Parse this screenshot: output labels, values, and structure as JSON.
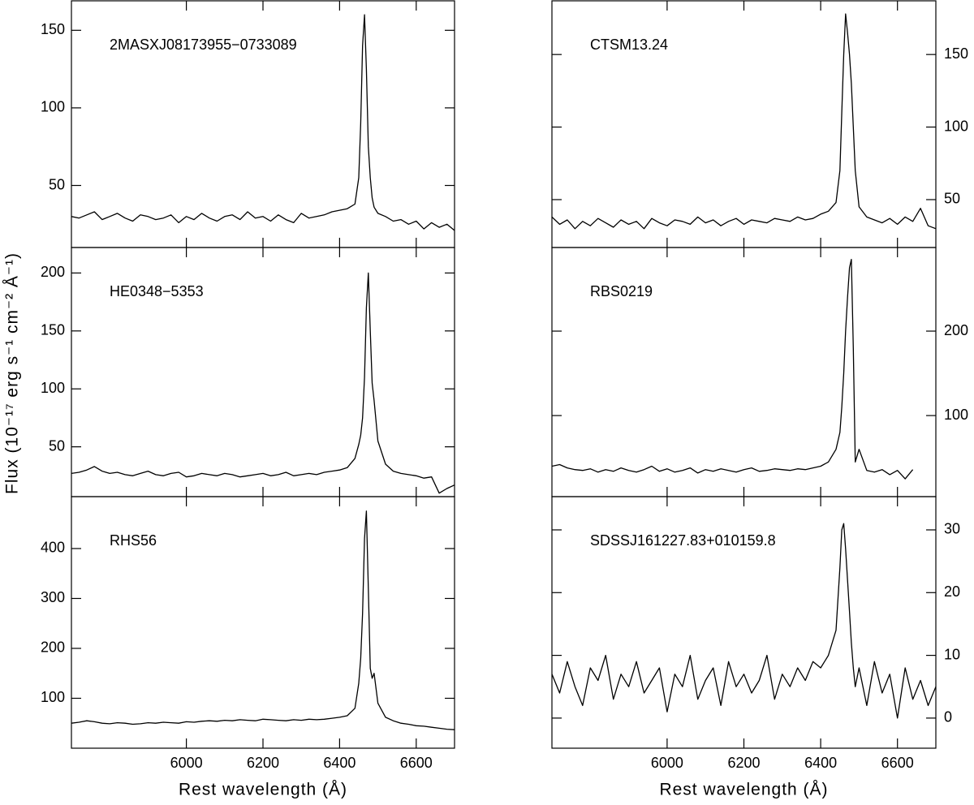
{
  "chart_data": [
    {
      "type": "line",
      "title": "2MASXJ08173955−0733089",
      "x": [
        5700,
        5720,
        5740,
        5760,
        5780,
        5800,
        5820,
        5840,
        5860,
        5880,
        5900,
        5920,
        5940,
        5960,
        5980,
        6000,
        6020,
        6040,
        6060,
        6080,
        6100,
        6120,
        6140,
        6160,
        6180,
        6200,
        6220,
        6240,
        6260,
        6280,
        6300,
        6320,
        6340,
        6360,
        6380,
        6400,
        6420,
        6440,
        6450,
        6455,
        6460,
        6465,
        6470,
        6475,
        6480,
        6485,
        6490,
        6500,
        6520,
        6540,
        6560,
        6580,
        6600,
        6620,
        6640,
        6660,
        6680,
        6700
      ],
      "values": [
        30,
        29,
        31,
        33,
        28,
        30,
        32,
        29,
        27,
        31,
        30,
        28,
        29,
        31,
        26,
        30,
        28,
        32,
        29,
        27,
        30,
        31,
        28,
        33,
        29,
        30,
        27,
        31,
        28,
        26,
        32,
        29,
        30,
        31,
        33,
        34,
        35,
        38,
        55,
        90,
        140,
        160,
        125,
        75,
        55,
        42,
        36,
        32,
        30,
        27,
        28,
        25,
        27,
        22,
        26,
        23,
        25,
        21
      ],
      "color": "#000000",
      "xlim": [
        5700,
        6700
      ],
      "ylim": [
        10,
        169
      ],
      "xticks": [
        6000,
        6200,
        6400,
        6600
      ],
      "yticks": [
        50,
        100,
        150
      ]
    },
    {
      "type": "line",
      "title": "HE0348−5353",
      "ylabel": "Flux (10⁻¹⁷ erg s⁻¹ cm⁻² Å⁻¹)",
      "x": [
        5700,
        5720,
        5740,
        5760,
        5780,
        5800,
        5820,
        5840,
        5860,
        5880,
        5900,
        5920,
        5940,
        5960,
        5980,
        6000,
        6020,
        6040,
        6060,
        6080,
        6100,
        6120,
        6140,
        6160,
        6180,
        6200,
        6220,
        6240,
        6260,
        6280,
        6300,
        6320,
        6340,
        6360,
        6380,
        6400,
        6420,
        6440,
        6450,
        6455,
        6460,
        6465,
        6470,
        6475,
        6480,
        6485,
        6490,
        6500,
        6520,
        6540,
        6560,
        6580,
        6600,
        6620,
        6640,
        6660,
        6680,
        6700
      ],
      "values": [
        27,
        28,
        30,
        33,
        29,
        27,
        28,
        26,
        25,
        27,
        29,
        26,
        25,
        27,
        28,
        24,
        25,
        27,
        26,
        25,
        27,
        26,
        24,
        25,
        26,
        27,
        25,
        26,
        28,
        25,
        26,
        27,
        26,
        28,
        29,
        30,
        32,
        40,
        52,
        60,
        75,
        110,
        170,
        200,
        150,
        105,
        90,
        55,
        35,
        29,
        27,
        26,
        25,
        23,
        24,
        10,
        14,
        17
      ],
      "color": "#000000",
      "xlim": [
        5700,
        6700
      ],
      "ylim": [
        7,
        222
      ],
      "xticks": [
        6000,
        6200,
        6400,
        6600
      ],
      "yticks": [
        50,
        100,
        150,
        200
      ]
    },
    {
      "type": "line",
      "title": "RHS56",
      "xlabel": "Rest wavelength (Å)",
      "x": [
        5700,
        5720,
        5740,
        5760,
        5780,
        5800,
        5820,
        5840,
        5860,
        5880,
        5900,
        5920,
        5940,
        5960,
        5980,
        6000,
        6020,
        6040,
        6060,
        6080,
        6100,
        6120,
        6140,
        6160,
        6180,
        6200,
        6220,
        6240,
        6260,
        6280,
        6300,
        6320,
        6340,
        6360,
        6380,
        6400,
        6420,
        6440,
        6450,
        6455,
        6460,
        6465,
        6470,
        6475,
        6480,
        6485,
        6490,
        6500,
        6520,
        6540,
        6560,
        6580,
        6600,
        6620,
        6640,
        6660,
        6680,
        6700
      ],
      "values": [
        50,
        52,
        55,
        53,
        50,
        49,
        51,
        50,
        48,
        49,
        51,
        50,
        52,
        51,
        50,
        53,
        52,
        54,
        55,
        54,
        56,
        55,
        57,
        56,
        55,
        58,
        57,
        56,
        55,
        57,
        56,
        58,
        57,
        58,
        60,
        62,
        65,
        80,
        130,
        180,
        270,
        420,
        475,
        320,
        160,
        140,
        150,
        90,
        62,
        55,
        50,
        48,
        45,
        44,
        42,
        40,
        38,
        37
      ],
      "color": "#000000",
      "xlim": [
        5700,
        6700
      ],
      "ylim": [
        0,
        504
      ],
      "xticks": [
        6000,
        6200,
        6400,
        6600
      ],
      "yticks": [
        100,
        200,
        300,
        400
      ]
    },
    {
      "type": "line",
      "title": "CTSM13.24",
      "x": [
        5700,
        5720,
        5740,
        5760,
        5780,
        5800,
        5820,
        5840,
        5860,
        5880,
        5900,
        5920,
        5940,
        5960,
        5980,
        6000,
        6020,
        6040,
        6060,
        6080,
        6100,
        6120,
        6140,
        6160,
        6180,
        6200,
        6220,
        6240,
        6260,
        6280,
        6300,
        6320,
        6340,
        6360,
        6380,
        6400,
        6420,
        6440,
        6450,
        6455,
        6460,
        6465,
        6470,
        6475,
        6480,
        6485,
        6490,
        6500,
        6520,
        6540,
        6560,
        6580,
        6600,
        6620,
        6640,
        6660,
        6680,
        6700
      ],
      "values": [
        38,
        33,
        36,
        30,
        35,
        32,
        37,
        34,
        31,
        36,
        33,
        35,
        30,
        37,
        34,
        32,
        36,
        35,
        33,
        38,
        34,
        36,
        32,
        35,
        37,
        33,
        36,
        35,
        34,
        37,
        36,
        35,
        38,
        36,
        37,
        40,
        42,
        48,
        70,
        110,
        150,
        178,
        165,
        150,
        130,
        100,
        70,
        45,
        38,
        36,
        34,
        37,
        33,
        38,
        35,
        44,
        32,
        30
      ],
      "color": "#000000",
      "xlim": [
        5700,
        6700
      ],
      "ylim": [
        17,
        187
      ],
      "xticks": [
        6000,
        6200,
        6400,
        6600
      ],
      "yticks": [
        50,
        100,
        150
      ]
    },
    {
      "type": "line",
      "title": "RBS0219",
      "x": [
        5700,
        5720,
        5740,
        5760,
        5780,
        5800,
        5820,
        5840,
        5860,
        5880,
        5900,
        5920,
        5940,
        5960,
        5980,
        6000,
        6020,
        6040,
        6060,
        6080,
        6100,
        6120,
        6140,
        6160,
        6180,
        6200,
        6220,
        6240,
        6260,
        6280,
        6300,
        6320,
        6340,
        6360,
        6380,
        6400,
        6420,
        6440,
        6450,
        6455,
        6460,
        6465,
        6470,
        6475,
        6480,
        6485,
        6490,
        6500,
        6520,
        6540,
        6560,
        6580,
        6600,
        6620,
        6640,
        6660,
        6680,
        6700
      ],
      "values": [
        40,
        42,
        38,
        36,
        35,
        37,
        33,
        36,
        34,
        38,
        35,
        33,
        36,
        40,
        34,
        37,
        33,
        35,
        38,
        32,
        36,
        34,
        37,
        35,
        33,
        36,
        38,
        34,
        35,
        37,
        36,
        35,
        37,
        36,
        38,
        40,
        45,
        60,
        80,
        110,
        150,
        200,
        240,
        275,
        285,
        180,
        45,
        60,
        35,
        33,
        36,
        30,
        35,
        25,
        36,
        null,
        null,
        null
      ],
      "color": "#000000",
      "xlim": [
        5700,
        6700
      ],
      "ylim": [
        4,
        299
      ],
      "xticks": [
        6000,
        6200,
        6400,
        6600
      ],
      "yticks": [
        100,
        200
      ]
    },
    {
      "type": "line",
      "title": "SDSSJ161227.83+010159.8",
      "xlabel": "Rest wavelength (Å)",
      "x": [
        5700,
        5720,
        5740,
        5760,
        5780,
        5800,
        5820,
        5840,
        5860,
        5880,
        5900,
        5920,
        5940,
        5960,
        5980,
        6000,
        6020,
        6040,
        6060,
        6080,
        6100,
        6120,
        6140,
        6160,
        6180,
        6200,
        6220,
        6240,
        6260,
        6280,
        6300,
        6320,
        6340,
        6360,
        6380,
        6400,
        6420,
        6440,
        6450,
        6455,
        6460,
        6465,
        6470,
        6475,
        6480,
        6485,
        6490,
        6500,
        6520,
        6540,
        6560,
        6580,
        6600,
        6620,
        6640,
        6660,
        6680,
        6700
      ],
      "values": [
        7,
        4,
        9,
        5,
        2,
        8,
        6,
        10,
        3,
        7,
        5,
        9,
        4,
        6,
        8,
        1,
        7,
        5,
        10,
        3,
        6,
        8,
        2,
        9,
        5,
        7,
        4,
        6,
        10,
        3,
        7,
        5,
        8,
        6,
        9,
        8,
        10,
        14,
        24,
        30,
        31,
        27,
        22,
        17,
        12,
        8,
        5,
        8,
        2,
        9,
        4,
        7,
        0,
        8,
        3,
        6,
        2,
        5
      ],
      "color": "#000000",
      "xlim": [
        5700,
        6700
      ],
      "ylim": [
        -4.8,
        35.3
      ],
      "xticks": [
        6000,
        6200,
        6400,
        6600
      ],
      "yticks": [
        0,
        10,
        20,
        30
      ]
    }
  ]
}
